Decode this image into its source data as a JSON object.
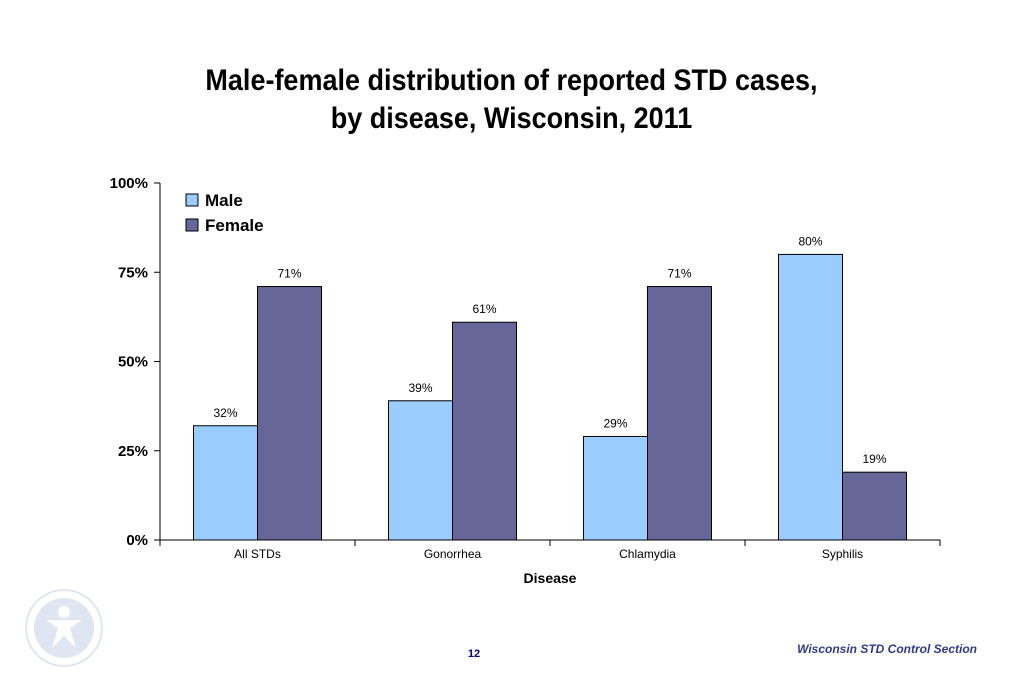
{
  "chart_data": {
    "type": "bar",
    "title_lines": [
      "Male-female distribution of reported STD cases,",
      "by disease, Wisconsin, 2011"
    ],
    "xlabel": "Disease",
    "ylabel": "",
    "categories": [
      "All STDs",
      "Gonorrhea",
      "Chlamydia",
      "Syphilis"
    ],
    "series": [
      {
        "name": "Male",
        "values": [
          32,
          39,
          29,
          80
        ],
        "labels": [
          "32%",
          "39%",
          "29%",
          "80%"
        ],
        "color": "#99ccff"
      },
      {
        "name": "Female",
        "values": [
          71,
          61,
          71,
          19
        ],
        "labels": [
          "71%",
          "61%",
          "71%",
          "19%"
        ],
        "color": "#666699"
      }
    ],
    "ylim": [
      0,
      100
    ],
    "yticks": [
      0,
      25,
      50,
      75,
      100
    ],
    "ytick_labels": [
      "0%",
      "25%",
      "50%",
      "75%",
      "100%"
    ],
    "grid": false,
    "legend_position": "top-left"
  },
  "footer": {
    "page_number": "12",
    "credit": "Wisconsin STD Control Section"
  }
}
